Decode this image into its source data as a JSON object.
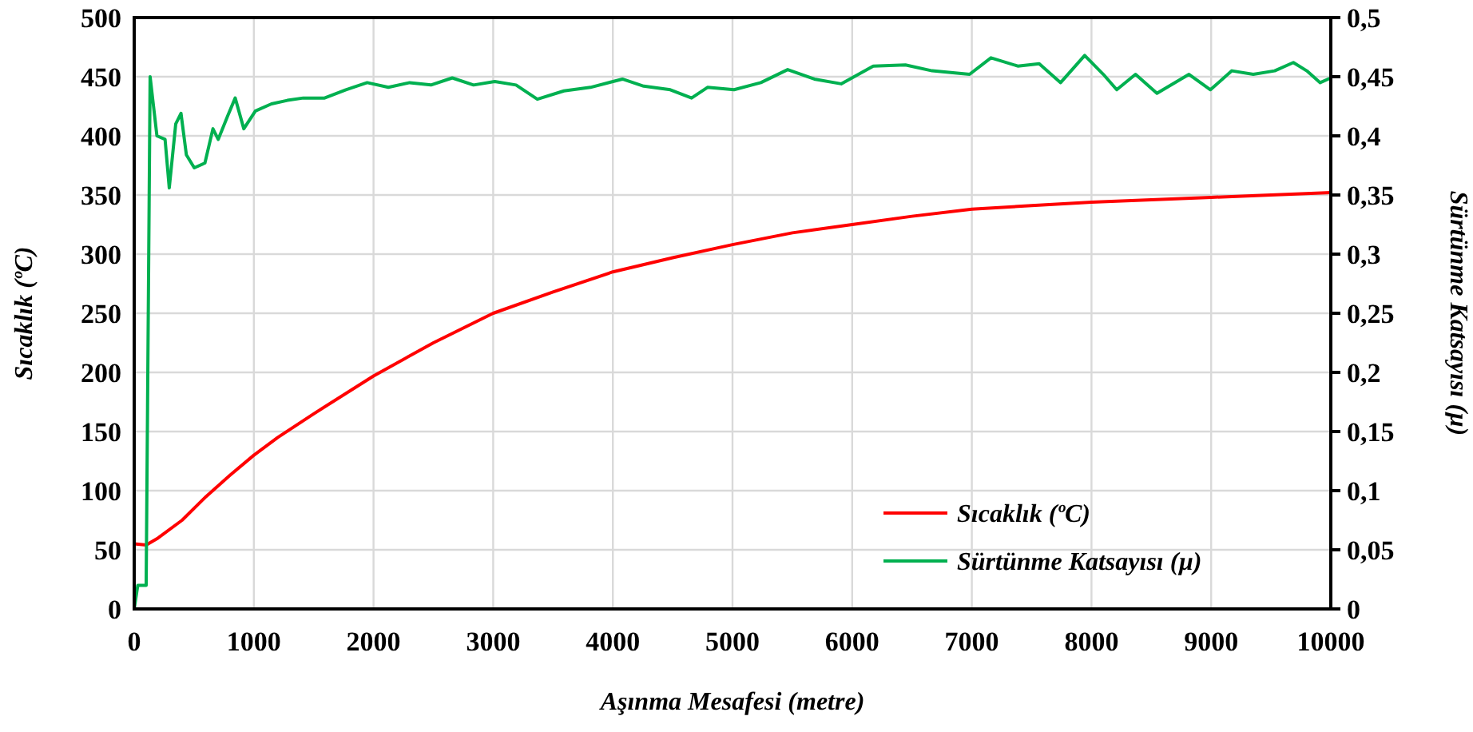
{
  "chart_data": {
    "type": "line",
    "xlabel": "Aşınma Mesafesi (metre)",
    "ylabel": "Sıcaklık (ºC)",
    "y2label": "Sürtünme Katsayısı (µ)",
    "xlim": [
      0,
      10000
    ],
    "xticks": [
      0,
      1000,
      2000,
      3000,
      4000,
      5000,
      6000,
      7000,
      8000,
      9000,
      10000
    ],
    "ylim": [
      0,
      500
    ],
    "yticks": [
      0,
      50,
      100,
      150,
      200,
      250,
      300,
      350,
      400,
      450,
      500
    ],
    "y2lim": [
      0,
      0.5
    ],
    "y2ticks": [
      {
        "value": 0,
        "label": "0"
      },
      {
        "value": 0.05,
        "label": "0,05"
      },
      {
        "value": 0.1,
        "label": "0,1"
      },
      {
        "value": 0.15,
        "label": "0,15"
      },
      {
        "value": 0.2,
        "label": "0,2"
      },
      {
        "value": 0.25,
        "label": "0,25"
      },
      {
        "value": 0.3,
        "label": "0,3"
      },
      {
        "value": 0.35,
        "label": "0,35"
      },
      {
        "value": 0.4,
        "label": "0,4"
      },
      {
        "value": 0.45,
        "label": "0,45"
      },
      {
        "value": 0.5,
        "label": "0,5"
      }
    ],
    "grid": true,
    "legend": "bottom right",
    "series": [
      {
        "name": "Sıcaklık (ºC)",
        "color": "#ff0000",
        "x": [
          0,
          100,
          200,
          400,
          600,
          800,
          1000,
          1200,
          1500,
          2000,
          2500,
          3000,
          3500,
          4000,
          4500,
          5000,
          5500,
          6000,
          6500,
          7000,
          7500,
          8000,
          8500,
          9000,
          9500,
          10000
        ],
        "values": [
          55,
          54,
          60,
          75,
          95,
          113,
          130,
          145,
          165,
          197,
          225,
          250,
          268,
          285,
          297,
          308,
          318,
          325,
          332,
          338,
          341,
          344,
          346,
          348,
          350,
          352
        ]
      },
      {
        "name": "Sürtünme Katsayısı (µ)",
        "color": "#00b050",
        "axis": "y2",
        "x": [
          0,
          30,
          100,
          133,
          190,
          258,
          293,
          347,
          391,
          436,
          502,
          591,
          658,
          702,
          782,
          844,
          916,
          1013,
          1147,
          1280,
          1413,
          1591,
          1769,
          1947,
          2124,
          2302,
          2480,
          2658,
          2836,
          3013,
          3191,
          3369,
          3591,
          3813,
          4080,
          4258,
          4480,
          4658,
          4791,
          5013,
          5237,
          5461,
          5684,
          5908,
          6176,
          6445,
          6668,
          6981,
          7160,
          7384,
          7563,
          7742,
          7943,
          8099,
          8211,
          8368,
          8547,
          8815,
          8994,
          9173,
          9352,
          9531,
          9687,
          9799,
          9911,
          10000
        ],
        "values": [
          0,
          0.02,
          0.02,
          0.45,
          0.4,
          0.397,
          0.356,
          0.41,
          0.419,
          0.384,
          0.373,
          0.377,
          0.406,
          0.397,
          0.417,
          0.432,
          0.406,
          0.421,
          0.427,
          0.43,
          0.432,
          0.432,
          0.439,
          0.445,
          0.441,
          0.445,
          0.443,
          0.449,
          0.443,
          0.446,
          0.443,
          0.431,
          0.438,
          0.441,
          0.448,
          0.442,
          0.439,
          0.432,
          0.441,
          0.439,
          0.445,
          0.456,
          0.448,
          0.444,
          0.459,
          0.46,
          0.455,
          0.452,
          0.466,
          0.459,
          0.461,
          0.445,
          0.468,
          0.452,
          0.439,
          0.452,
          0.436,
          0.452,
          0.439,
          0.455,
          0.452,
          0.455,
          0.462,
          0.455,
          0.445,
          0.449
        ]
      }
    ]
  }
}
